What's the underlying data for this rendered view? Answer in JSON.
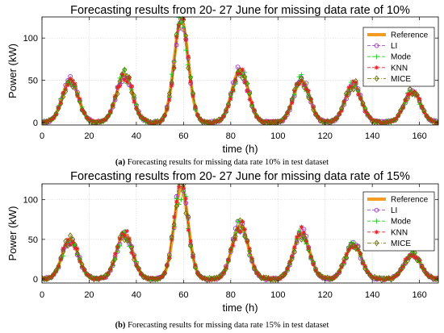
{
  "chart_data": [
    {
      "type": "line",
      "title": "Forecasting results from 20- 27 June for missing data rate of 10%",
      "xlabel": "time (h)",
      "ylabel": "Power (kW)",
      "xlim": [
        0,
        168
      ],
      "ylim": [
        -3,
        125
      ],
      "xticks": [
        0,
        20,
        40,
        60,
        80,
        100,
        120,
        140,
        160
      ],
      "yticks": [
        0,
        50,
        100
      ],
      "grid": true,
      "legend_position": "top-right",
      "caption_prefix": "(a)",
      "caption": "Forecasting results for missing data rate 10% in test dataset",
      "peaks": [
        [
          12,
          50
        ],
        [
          35,
          56
        ],
        [
          59,
          122
        ],
        [
          84,
          63
        ],
        [
          110,
          50
        ],
        [
          132,
          45
        ],
        [
          157,
          37
        ]
      ],
      "series": [
        {
          "name": "Reference",
          "color": "#F39C1F",
          "style": "solid-thick",
          "marker": "none"
        },
        {
          "name": "LI",
          "color": "#9B30C8",
          "style": "dashed",
          "marker": "circle"
        },
        {
          "name": "Mode",
          "color": "#22CC22",
          "style": "dashed",
          "marker": "plus"
        },
        {
          "name": "KNN",
          "color": "#E8202A",
          "style": "dashed",
          "marker": "star"
        },
        {
          "name": "MICE",
          "color": "#6B6B00",
          "style": "dashdot",
          "marker": "diamond"
        }
      ]
    },
    {
      "type": "line",
      "title": "Forecasting results from 20- 27 June for missing data rate of 15%",
      "xlabel": "time (h)",
      "ylabel": "Power (kW)",
      "xlim": [
        0,
        168
      ],
      "ylim": [
        -5,
        120
      ],
      "xticks": [
        0,
        20,
        40,
        60,
        80,
        100,
        120,
        140,
        160
      ],
      "yticks": [
        0,
        50,
        100
      ],
      "grid": true,
      "legend_position": "top-right",
      "caption_prefix": "(b)",
      "caption": "Forecasting results for missing data rate 15% in test dataset",
      "peaks": [
        [
          12,
          50
        ],
        [
          35,
          57
        ],
        [
          59,
          115
        ],
        [
          84,
          68
        ],
        [
          110,
          58
        ],
        [
          132,
          44
        ],
        [
          157,
          32
        ]
      ],
      "series": [
        {
          "name": "Reference",
          "color": "#F39C1F",
          "style": "solid-thick",
          "marker": "none"
        },
        {
          "name": "LI",
          "color": "#9B30C8",
          "style": "dashed",
          "marker": "circle"
        },
        {
          "name": "Mode",
          "color": "#22CC22",
          "style": "dashed",
          "marker": "plus"
        },
        {
          "name": "KNN",
          "color": "#E8202A",
          "style": "dashed",
          "marker": "star"
        },
        {
          "name": "MICE",
          "color": "#6B6B00",
          "style": "dashdot",
          "marker": "diamond"
        }
      ]
    }
  ]
}
